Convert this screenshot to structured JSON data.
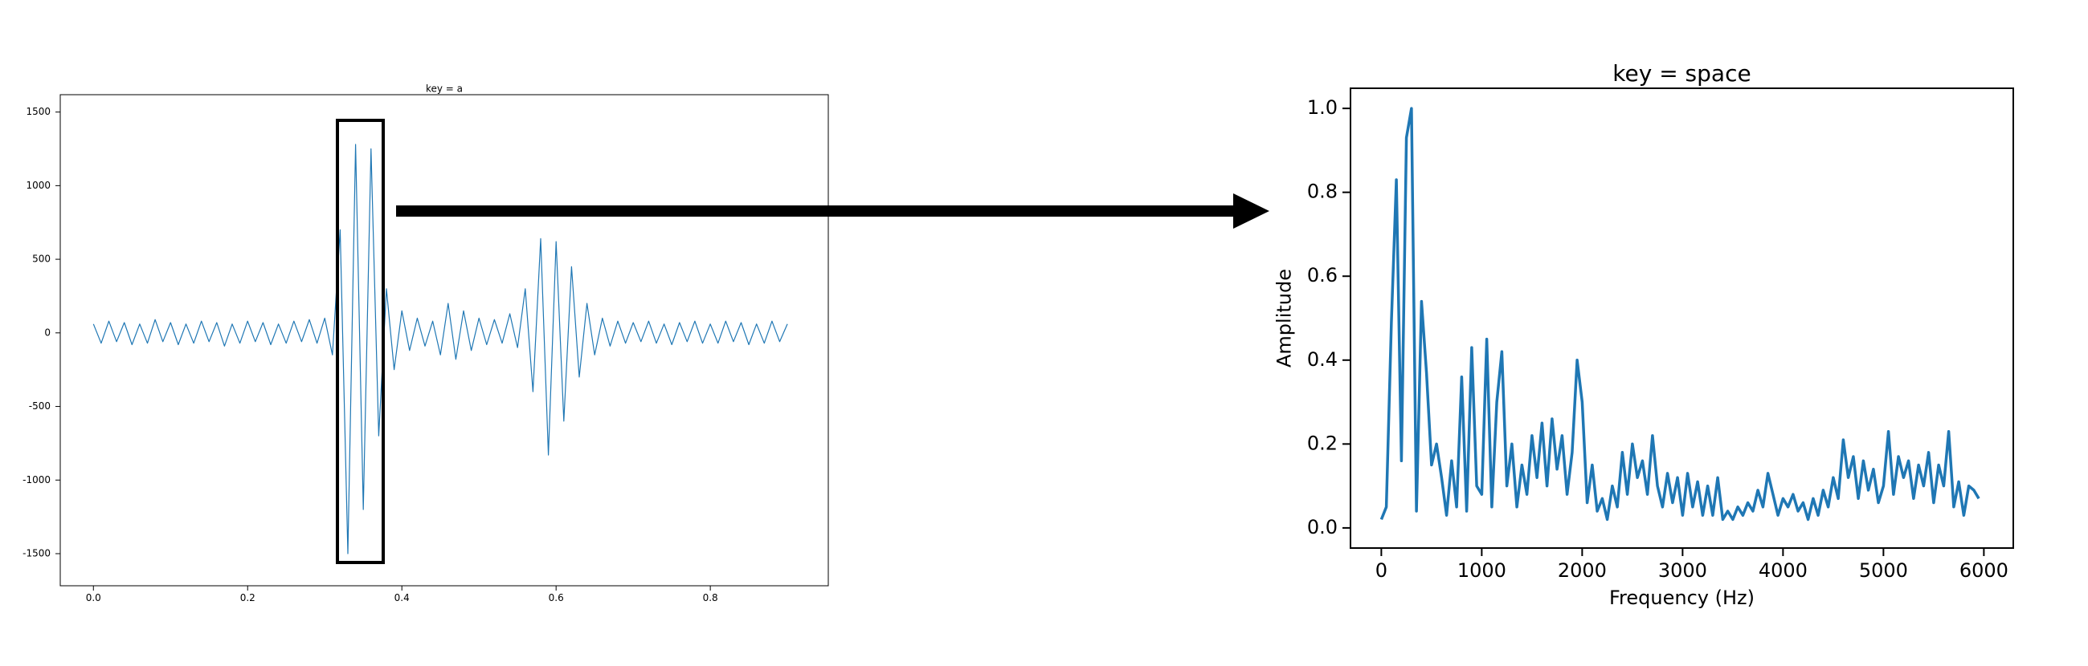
{
  "chart_data": [
    {
      "type": "line",
      "title": "key =  a",
      "color": "#1f77b4",
      "x": [
        0,
        0.01,
        0.02,
        0.03,
        0.04,
        0.05,
        0.06,
        0.07,
        0.08,
        0.09,
        0.1,
        0.11,
        0.12,
        0.13,
        0.14,
        0.15,
        0.16,
        0.17,
        0.18,
        0.19,
        0.2,
        0.21,
        0.22,
        0.23,
        0.24,
        0.25,
        0.26,
        0.27,
        0.28,
        0.29,
        0.3,
        0.31,
        0.32,
        0.33,
        0.34,
        0.35,
        0.36,
        0.37,
        0.38,
        0.39,
        0.4,
        0.41,
        0.42,
        0.43,
        0.44,
        0.45,
        0.46,
        0.47,
        0.48,
        0.49,
        0.5,
        0.51,
        0.52,
        0.53,
        0.54,
        0.55,
        0.56,
        0.57,
        0.58,
        0.59,
        0.6,
        0.61,
        0.62,
        0.63,
        0.64,
        0.65,
        0.66,
        0.67,
        0.68,
        0.69,
        0.7,
        0.71,
        0.72,
        0.73,
        0.74,
        0.75,
        0.76,
        0.77,
        0.78,
        0.79,
        0.8,
        0.81,
        0.82,
        0.83,
        0.84,
        0.85,
        0.86,
        0.87,
        0.88,
        0.89,
        0.9
      ],
      "values": [
        60,
        -70,
        80,
        -60,
        70,
        -80,
        60,
        -70,
        90,
        -60,
        70,
        -80,
        60,
        -70,
        80,
        -60,
        70,
        -90,
        60,
        -70,
        80,
        -60,
        70,
        -80,
        60,
        -70,
        80,
        -60,
        90,
        -70,
        100,
        -150,
        700,
        -1500,
        1280,
        -1200,
        1250,
        -700,
        300,
        -250,
        150,
        -120,
        100,
        -90,
        80,
        -150,
        200,
        -180,
        150,
        -120,
        100,
        -80,
        90,
        -70,
        130,
        -100,
        300,
        -400,
        640,
        -830,
        620,
        -600,
        450,
        -300,
        200,
        -150,
        100,
        -90,
        80,
        -70,
        70,
        -60,
        80,
        -70,
        60,
        -80,
        70,
        -60,
        80,
        -70,
        60,
        -70,
        80,
        -60,
        70,
        -80,
        60,
        -70,
        80,
        -60,
        60
      ],
      "xlim": [
        -0.043,
        0.953
      ],
      "ylim": [
        -1718,
        1618
      ],
      "xticks": [
        {
          "value": 0,
          "label": "0.0"
        },
        0.2,
        0.4,
        0.6,
        0.8
      ],
      "yticks": [
        -1500,
        -1000,
        -500,
        0,
        500,
        1000,
        1500
      ]
    },
    {
      "type": "line",
      "title": "key =  space",
      "x_label": "Frequency (Hz)",
      "y_label": "Amplitude",
      "color": "#1f77b4",
      "x": [
        0,
        50,
        100,
        150,
        200,
        250,
        300,
        350,
        400,
        450,
        500,
        550,
        600,
        650,
        700,
        750,
        800,
        850,
        900,
        950,
        1000,
        1050,
        1100,
        1150,
        1200,
        1250,
        1300,
        1350,
        1400,
        1450,
        1500,
        1550,
        1600,
        1650,
        1700,
        1750,
        1800,
        1850,
        1900,
        1950,
        2000,
        2050,
        2100,
        2150,
        2200,
        2250,
        2300,
        2350,
        2400,
        2450,
        2500,
        2550,
        2600,
        2650,
        2700,
        2750,
        2800,
        2850,
        2900,
        2950,
        3000,
        3050,
        3100,
        3150,
        3200,
        3250,
        3300,
        3350,
        3400,
        3450,
        3500,
        3550,
        3600,
        3650,
        3700,
        3750,
        3800,
        3850,
        3900,
        3950,
        4000,
        4050,
        4100,
        4150,
        4200,
        4250,
        4300,
        4350,
        4400,
        4450,
        4500,
        4550,
        4600,
        4650,
        4700,
        4750,
        4800,
        4850,
        4900,
        4950,
        5000,
        5050,
        5100,
        5150,
        5200,
        5250,
        5300,
        5350,
        5400,
        5450,
        5500,
        5550,
        5600,
        5650,
        5700,
        5750,
        5800,
        5850,
        5900,
        5950
      ],
      "values": [
        0.02,
        0.05,
        0.49,
        0.83,
        0.16,
        0.93,
        1.0,
        0.04,
        0.54,
        0.37,
        0.15,
        0.2,
        0.12,
        0.03,
        0.16,
        0.05,
        0.36,
        0.04,
        0.43,
        0.1,
        0.08,
        0.45,
        0.05,
        0.3,
        0.42,
        0.1,
        0.2,
        0.05,
        0.15,
        0.08,
        0.22,
        0.12,
        0.25,
        0.1,
        0.26,
        0.14,
        0.22,
        0.08,
        0.18,
        0.4,
        0.3,
        0.06,
        0.15,
        0.04,
        0.07,
        0.02,
        0.1,
        0.05,
        0.18,
        0.08,
        0.2,
        0.12,
        0.16,
        0.08,
        0.22,
        0.1,
        0.05,
        0.13,
        0.06,
        0.12,
        0.03,
        0.13,
        0.05,
        0.11,
        0.03,
        0.1,
        0.03,
        0.12,
        0.02,
        0.04,
        0.02,
        0.05,
        0.03,
        0.06,
        0.04,
        0.09,
        0.05,
        0.13,
        0.08,
        0.03,
        0.07,
        0.05,
        0.08,
        0.04,
        0.06,
        0.02,
        0.07,
        0.03,
        0.09,
        0.05,
        0.12,
        0.07,
        0.21,
        0.12,
        0.17,
        0.07,
        0.16,
        0.09,
        0.14,
        0.06,
        0.1,
        0.23,
        0.08,
        0.17,
        0.12,
        0.16,
        0.07,
        0.15,
        0.1,
        0.18,
        0.06,
        0.15,
        0.1,
        0.23,
        0.05,
        0.11,
        0.03,
        0.1,
        0.09,
        0.07
      ],
      "xlim": [
        -307,
        6293
      ],
      "ylim": [
        -0.048,
        1.048
      ],
      "xticks": [
        0,
        1000,
        2000,
        3000,
        4000,
        5000,
        6000
      ],
      "yticks": [
        {
          "value": 0,
          "label": "0.0"
        },
        0.2,
        0.4,
        0.6,
        0.8,
        {
          "value": 1,
          "label": "1.0"
        }
      ]
    }
  ]
}
